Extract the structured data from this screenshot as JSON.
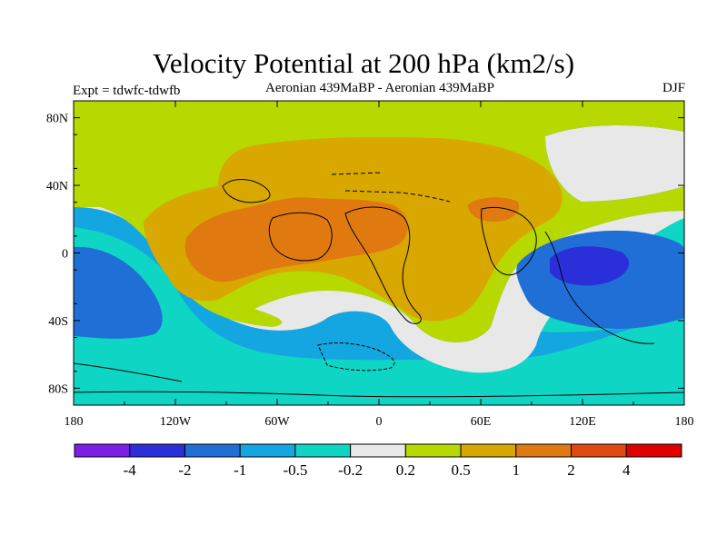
{
  "title": "Velocity Potential at 200 hPa (km2/s)",
  "subtitle_left": "Expt = tdwfc-tdwfb",
  "subtitle_center": "Aeronian 439MaBP - Aeronian 439MaBP",
  "subtitle_right": "DJF",
  "y_axis": {
    "labels": [
      "80N",
      "40N",
      "0",
      "40S",
      "80S"
    ],
    "latitudes": [
      80,
      40,
      0,
      -40,
      -80
    ]
  },
  "x_axis": {
    "labels": [
      "180",
      "120W",
      "60W",
      "0",
      "60E",
      "120E",
      "180"
    ],
    "longitudes": [
      -180,
      -120,
      -60,
      0,
      60,
      120,
      180
    ]
  },
  "colorbar": {
    "labels": [
      "-4",
      "-2",
      "-1",
      "-0.5",
      "-0.2",
      "0.2",
      "0.5",
      "1",
      "2",
      "4"
    ],
    "colors": [
      "#7a1ee8",
      "#2b2fd9",
      "#1f6fd6",
      "#14a6e0",
      "#0fd6c4",
      "#e8e8e8",
      "#b7d800",
      "#d8a800",
      "#e07a10",
      "#e04a10",
      "#e00000"
    ]
  },
  "map_fill_colors": {
    "neg_strong": "#2b2fd9",
    "neg_mid": "#1f6fd6",
    "neg_light": "#14a6e0",
    "neg_weak": "#0fd6c4",
    "neutral": "#e8e8e8",
    "pos_weak": "#b7d800",
    "pos_light": "#d8a800",
    "pos_mid": "#e07a10"
  }
}
